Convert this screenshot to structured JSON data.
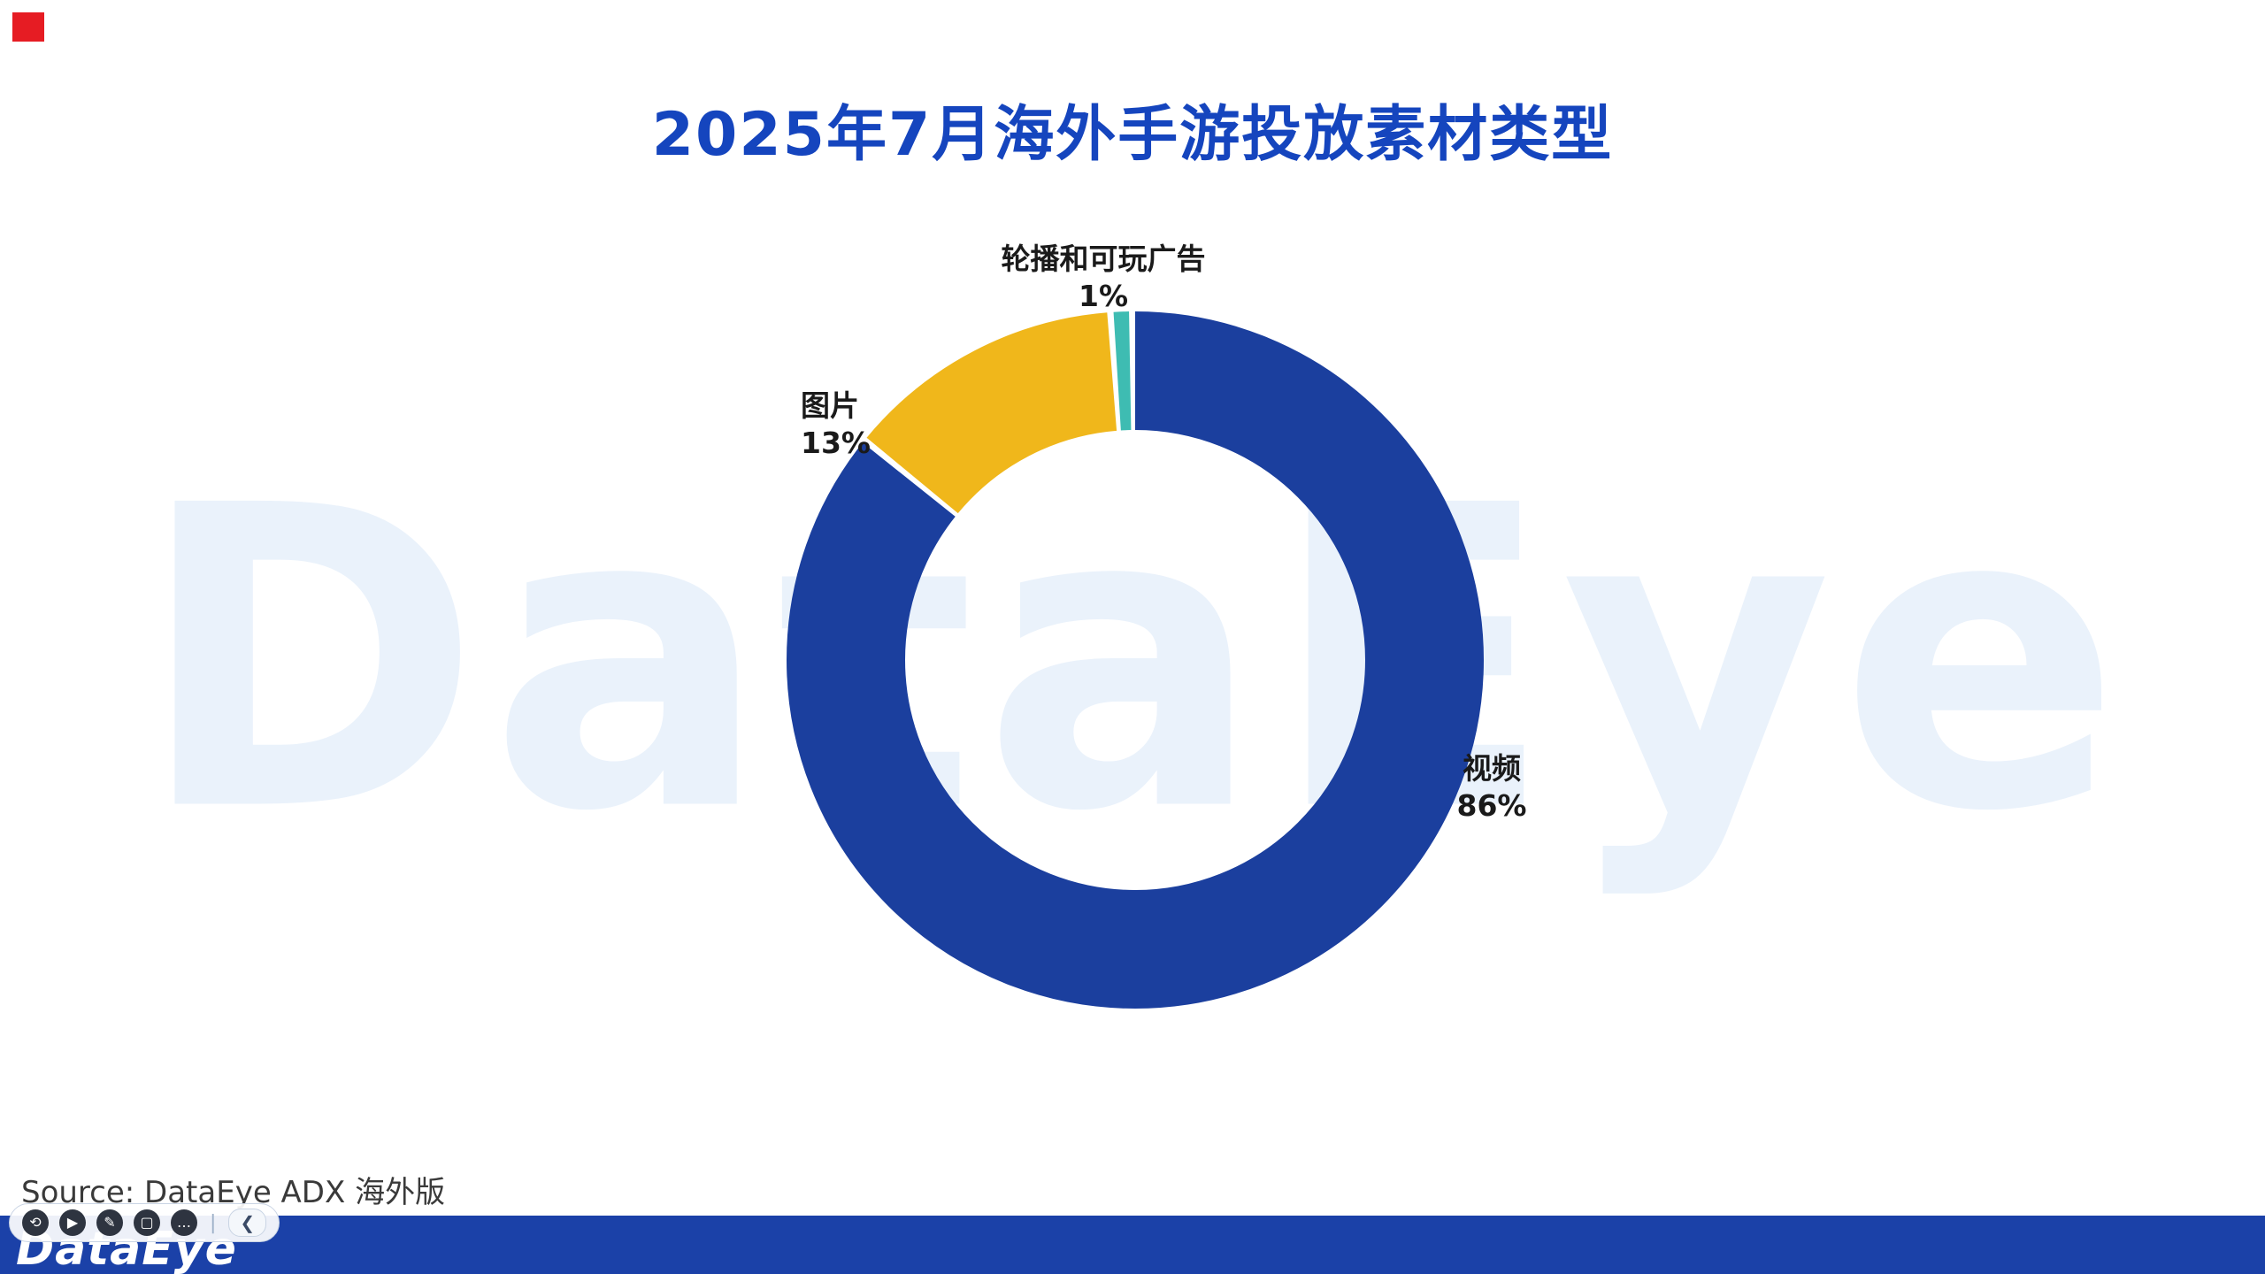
{
  "title": "2025年7月海外手游投放素材类型",
  "watermark": "DataEye",
  "source": "Source: DataEye ADX 海外版",
  "footer": {
    "logo": "DataEye"
  },
  "toolbar": {
    "icons": [
      {
        "name": "undo",
        "glyph": "⟲"
      },
      {
        "name": "play",
        "glyph": "▶"
      },
      {
        "name": "pen",
        "glyph": "✎"
      },
      {
        "name": "screen",
        "glyph": "▢"
      },
      {
        "name": "comment",
        "glyph": "…"
      }
    ],
    "collapse_glyph": "❮"
  },
  "theme": {
    "title_color": "#1545BE",
    "watermark_color": "#EAF2FB",
    "footer_color": "#1B41A8",
    "marker_color": "#E61C23"
  },
  "chart_data": {
    "type": "pie",
    "subtype": "donut",
    "title": "2025年7月海外手游投放素材类型",
    "unit": "%",
    "start": "top",
    "direction": "clockwise",
    "inner_radius_ratio": 0.66,
    "legend_position": "none",
    "segments": [
      {
        "label": "视频",
        "value": 86,
        "pct": "86%",
        "color": "#1B3F9E"
      },
      {
        "label": "图片",
        "value": 13,
        "pct": "13%",
        "color": "#F0B71B"
      },
      {
        "label": "轮播和可玩广告",
        "value": 1,
        "pct": "1%",
        "color": "#3EBCB2"
      }
    ]
  }
}
